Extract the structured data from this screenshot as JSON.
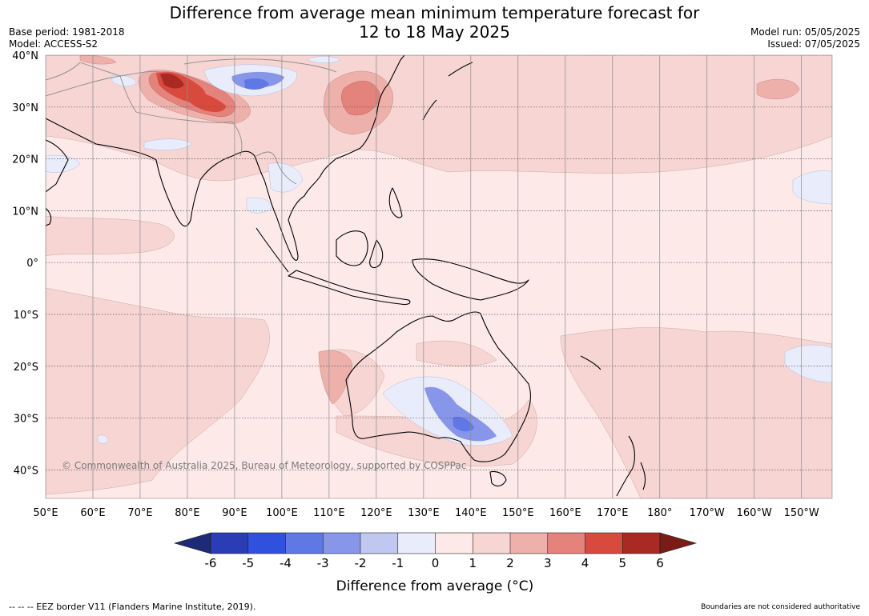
{
  "title": {
    "line1": "Difference from average mean minimum temperature forecast for",
    "line2": "12 to 18 May 2025"
  },
  "meta_left": {
    "base_period": "Base period: 1981-2018",
    "model": "Model: ACCESS-S2"
  },
  "meta_right": {
    "model_run": "Model run: 05/05/2025",
    "issued": "Issued: 07/05/2025"
  },
  "map": {
    "lat_labels": [
      "40°N",
      "30°N",
      "20°N",
      "10°N",
      "0°",
      "10°S",
      "20°S",
      "30°S",
      "40°S"
    ],
    "lat_values": [
      40,
      30,
      20,
      10,
      0,
      -10,
      -20,
      -30,
      -40
    ],
    "lon_labels": [
      "50°E",
      "60°E",
      "70°E",
      "80°E",
      "90°E",
      "100°E",
      "110°E",
      "120°E",
      "130°E",
      "140°E",
      "150°E",
      "160°E",
      "170°E",
      "180°",
      "170°W",
      "160°W",
      "150°W"
    ],
    "lon_values": [
      50,
      60,
      70,
      80,
      90,
      100,
      110,
      120,
      130,
      140,
      150,
      160,
      170,
      180,
      190,
      200,
      210
    ],
    "extent": {
      "lon": [
        50,
        216.5
      ],
      "lat": [
        -45.5,
        40
      ]
    },
    "background_anomaly_class": "0 to 1",
    "copyright": "© Commonwealth of Australia 2025, Bureau of Meteorology, supported by COSPPac"
  },
  "colorbar": {
    "ticks": [
      "-6",
      "-5",
      "-4",
      "-3",
      "-2",
      "-1",
      "0",
      "1",
      "2",
      "3",
      "4",
      "5",
      "6"
    ],
    "colors": [
      "#1c2a77",
      "#2a3db5",
      "#3050de",
      "#5f78e4",
      "#8796e8",
      "#c0c8f2",
      "#e9ecfb",
      "#fce9e8",
      "#f6d5d3",
      "#edb0ab",
      "#e4837b",
      "#d84a3e",
      "#a82a22",
      "#7a1b16"
    ],
    "label": "Difference from average (°C)"
  },
  "footer": {
    "eez": "--  --  -- EEZ border V11 (Flanders Marine Institute, 2019).",
    "boundaries": "Boundaries are not considered authoritative"
  }
}
